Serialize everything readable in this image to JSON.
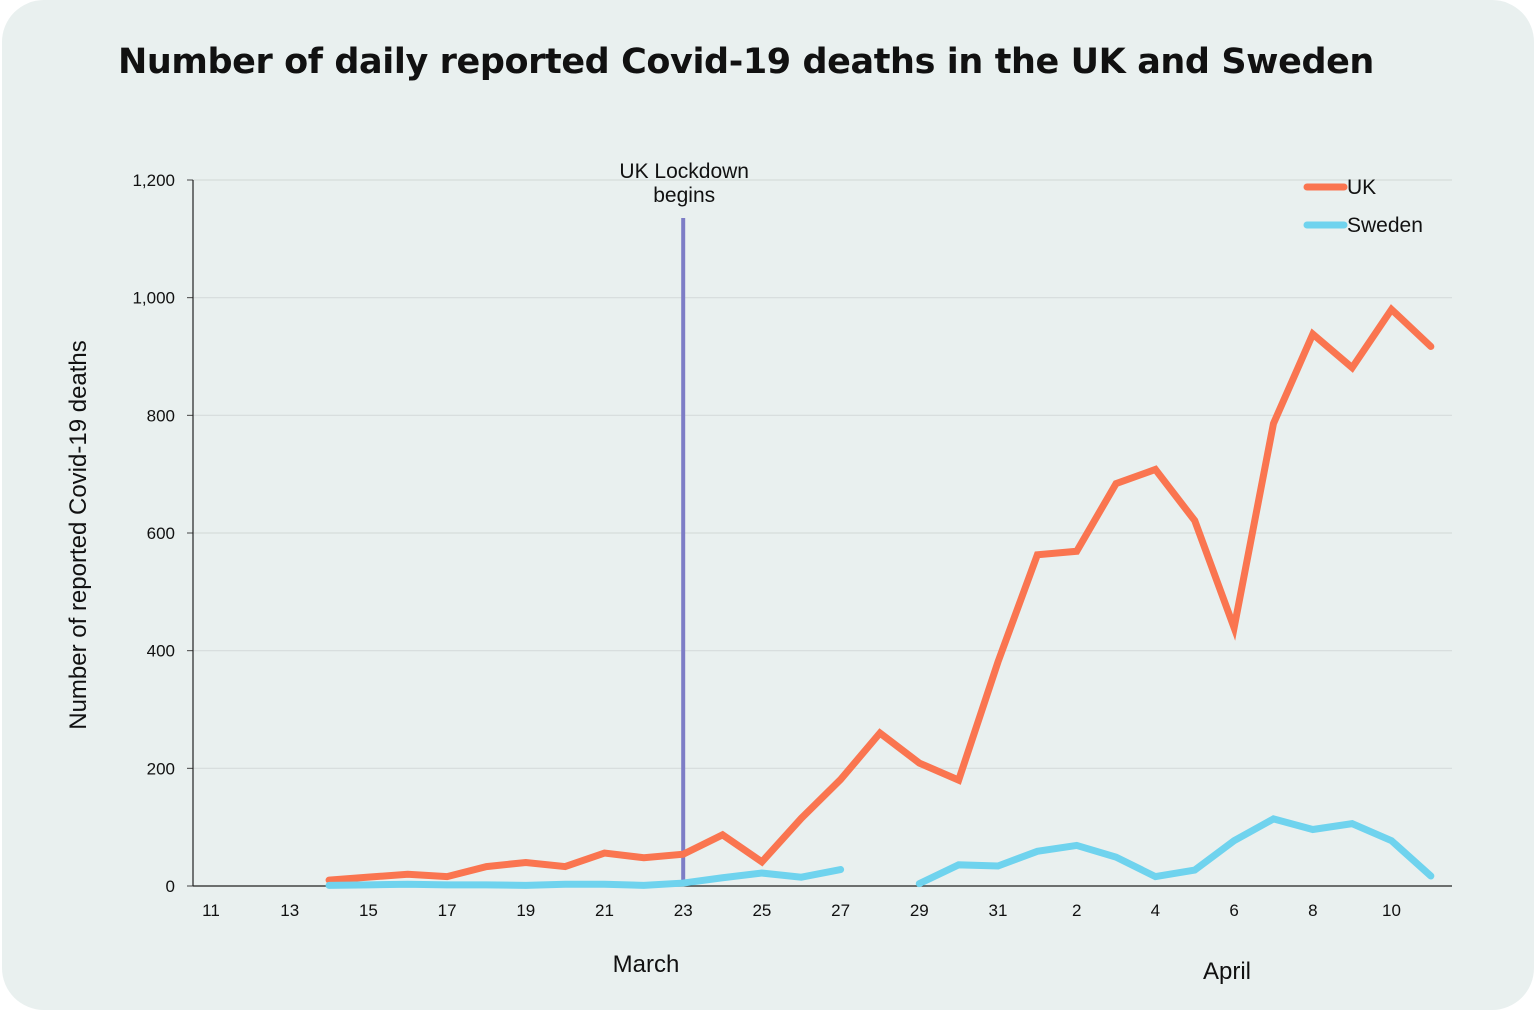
{
  "title": "Number of daily reported Covid-19 deaths in the UK and Sweden",
  "chart_data": {
    "type": "line",
    "title": "Number of daily reported Covid-19 deaths in the UK and Sweden",
    "ylabel": "Number of reported Covid-19 deaths",
    "xlabel": "",
    "ylim": [
      0,
      1200
    ],
    "yticks": [
      0,
      200,
      400,
      600,
      800,
      1000,
      1200
    ],
    "ytick_labels": [
      "0",
      "200",
      "400",
      "600",
      "800",
      "1,000",
      "1,200"
    ],
    "x_dates": [
      "2020-03-11",
      "2020-03-12",
      "2020-03-13",
      "2020-03-14",
      "2020-03-15",
      "2020-03-16",
      "2020-03-17",
      "2020-03-18",
      "2020-03-19",
      "2020-03-20",
      "2020-03-21",
      "2020-03-22",
      "2020-03-23",
      "2020-03-24",
      "2020-03-25",
      "2020-03-26",
      "2020-03-27",
      "2020-03-28",
      "2020-03-29",
      "2020-03-30",
      "2020-03-31",
      "2020-04-01",
      "2020-04-02",
      "2020-04-03",
      "2020-04-04",
      "2020-04-05",
      "2020-04-06",
      "2020-04-07",
      "2020-04-08",
      "2020-04-09",
      "2020-04-10",
      "2020-04-11"
    ],
    "xtick_labels": [
      "11",
      "13",
      "15",
      "17",
      "19",
      "21",
      "23",
      "25",
      "27",
      "29",
      "31",
      "2",
      "4",
      "6",
      "8",
      "10"
    ],
    "month_labels": [
      "March",
      "April"
    ],
    "grid": true,
    "legend_position": "top-right",
    "series": [
      {
        "name": "UK",
        "color": "#fa7550",
        "values": [
          null,
          null,
          null,
          10,
          15,
          20,
          16,
          33,
          40,
          33,
          56,
          48,
          54,
          87,
          41,
          115,
          181,
          260,
          209,
          180,
          381,
          563,
          569,
          684,
          708,
          621,
          439,
          786,
          938,
          881,
          980,
          917
        ]
      },
      {
        "name": "Sweden",
        "color": "#6fd3ee",
        "values": [
          null,
          null,
          null,
          1,
          2,
          3,
          2,
          2,
          1,
          3,
          3,
          1,
          5,
          14,
          22,
          15,
          28,
          null,
          4,
          36,
          34,
          59,
          69,
          49,
          16,
          27,
          77,
          114,
          96,
          106,
          77,
          17
        ]
      }
    ],
    "annotations": [
      {
        "x": "2020-03-23",
        "label": "UK Lockdown begins",
        "color": "#7d7dc6"
      }
    ]
  }
}
